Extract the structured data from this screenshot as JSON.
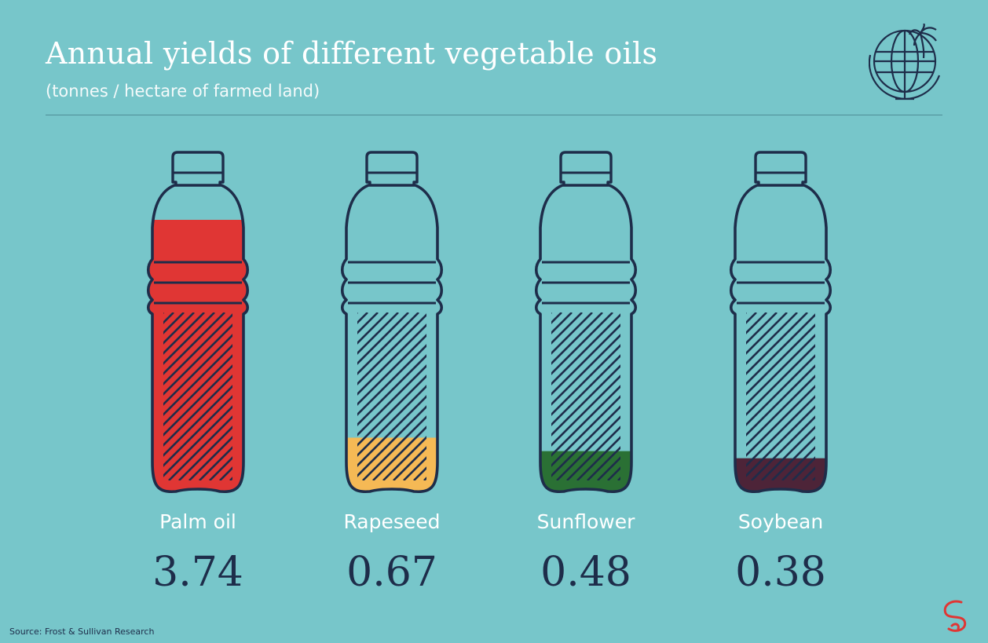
{
  "header": {
    "title": "Annual yields of different vegetable oils",
    "subtitle": "(tonnes / hectare of farmed land)"
  },
  "source": "Source: Frost & Sullivan Research",
  "icons": {
    "logo": "globe-palm-tree-icon",
    "brand": "brand-mark-icon"
  },
  "colors": {
    "background": "#77c6ca",
    "outline": "#1e2d4a"
  },
  "chart_data": {
    "type": "bar",
    "title": "Annual yields of different vegetable oils",
    "subtitle": "(tonnes / hectare of farmed land)",
    "categories": [
      "Palm oil",
      "Rapeseed",
      "Sunflower",
      "Soybean"
    ],
    "values": [
      3.74,
      0.67,
      0.48,
      0.38
    ],
    "value_labels": [
      "3.74",
      "0.67",
      "0.48",
      "0.38"
    ],
    "colors": [
      "#e03634",
      "#f5b955",
      "#2a7034",
      "#4d2438"
    ],
    "ylim": [
      0,
      3.74
    ],
    "grid": false,
    "legend": "none"
  }
}
